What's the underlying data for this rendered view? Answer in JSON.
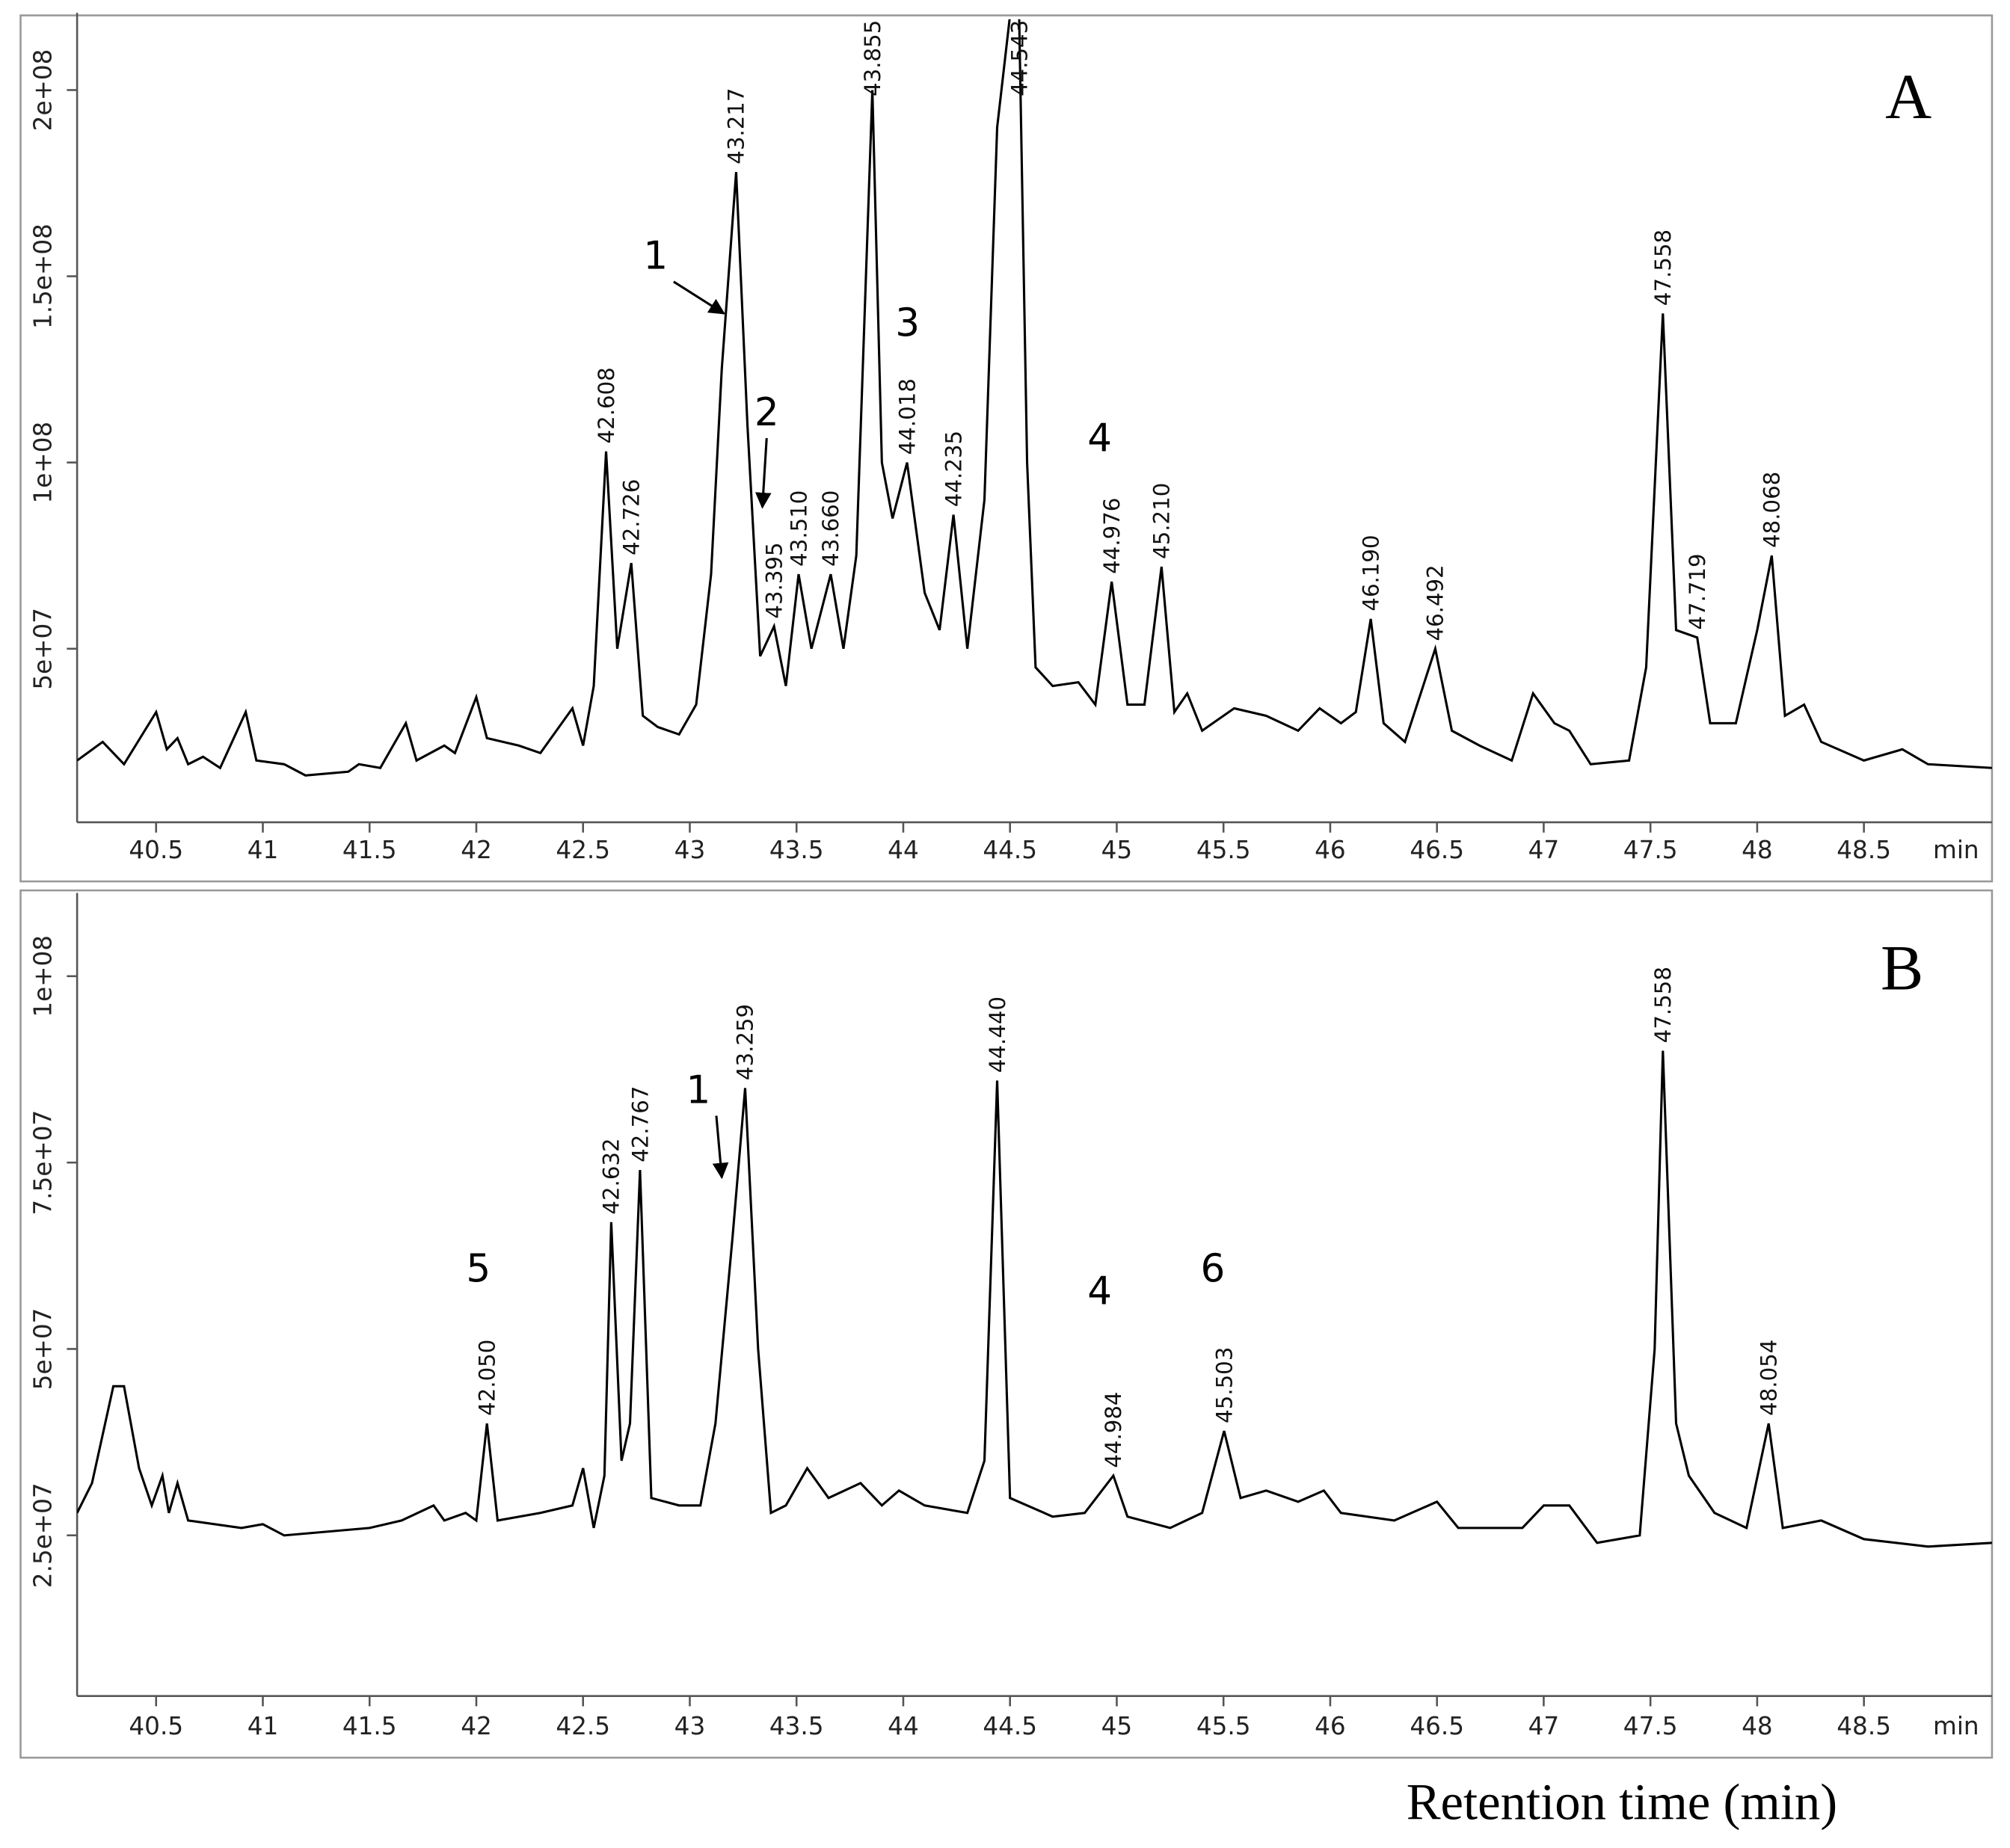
{
  "chart_data": [
    {
      "type": "line",
      "panel": "A",
      "xunit": "min",
      "color": "#000000",
      "xlim": [
        40.13,
        49.1
      ],
      "ylim": [
        3400000.0,
        219000000.0
      ],
      "xticks": [
        40.5,
        41,
        41.5,
        42,
        42.5,
        43,
        43.5,
        44,
        44.5,
        45,
        45.5,
        46,
        46.5,
        47,
        47.5,
        48,
        48.5
      ],
      "yticks": [
        {
          "value": 50000000.0,
          "label": "5e+07"
        },
        {
          "value": 100000000.0,
          "label": "1e+08"
        },
        {
          "value": 150000000.0,
          "label": "1.5e+08"
        },
        {
          "value": 200000000.0,
          "label": "2e+08"
        }
      ],
      "x": [
        40.13,
        40.25,
        40.35,
        40.5,
        40.55,
        40.6,
        40.65,
        40.72,
        40.8,
        40.92,
        40.97,
        41.1,
        41.2,
        41.4,
        41.45,
        41.55,
        41.67,
        41.72,
        41.85,
        41.9,
        42.0,
        42.05,
        42.2,
        42.3,
        42.45,
        42.5,
        42.55,
        42.608,
        42.66,
        42.726,
        42.78,
        42.85,
        42.95,
        43.03,
        43.1,
        43.15,
        43.217,
        43.27,
        43.33,
        43.395,
        43.45,
        43.51,
        43.57,
        43.66,
        43.72,
        43.78,
        43.855,
        43.9,
        43.95,
        44.018,
        44.1,
        44.17,
        44.235,
        44.3,
        44.38,
        44.44,
        44.5,
        44.543,
        44.58,
        44.62,
        44.7,
        44.82,
        44.9,
        44.976,
        45.05,
        45.13,
        45.21,
        45.27,
        45.33,
        45.4,
        45.55,
        45.7,
        45.85,
        45.95,
        46.05,
        46.12,
        46.19,
        46.25,
        46.35,
        46.492,
        46.57,
        46.7,
        46.85,
        46.95,
        47.05,
        47.12,
        47.22,
        47.4,
        47.48,
        47.558,
        47.62,
        47.719,
        47.78,
        47.9,
        48.0,
        48.068,
        48.13,
        48.22,
        48.3,
        48.5,
        48.68,
        48.8,
        49.1
      ],
      "values": [
        20000000.0,
        25000000.0,
        19000000.0,
        33000000.0,
        23000000.0,
        26000000.0,
        19000000.0,
        21000000.0,
        18000000.0,
        33000000.0,
        20000000.0,
        19000000.0,
        16000000.0,
        17000000.0,
        19000000.0,
        18000000.0,
        30000000.0,
        20000000.0,
        24000000.0,
        22000000.0,
        37000000.0,
        26000000.0,
        24000000.0,
        22000000.0,
        34000000.0,
        24000000.0,
        40000000.0,
        103000000.0,
        50000000.0,
        73000000.0,
        32000000.0,
        29000000.0,
        27000000.0,
        35000000.0,
        70000000.0,
        125000000.0,
        178000000.0,
        110000000.0,
        48000000.0,
        56000000.0,
        40000000.0,
        70000000.0,
        50000000.0,
        70000000.0,
        50000000.0,
        75000000.0,
        200000000.0,
        100000000.0,
        85000000.0,
        100000000.0,
        65000000.0,
        55000000.0,
        86000000.0,
        50000000.0,
        90000000.0,
        190000000.0,
        220000000.0,
        220000000.0,
        100000000.0,
        45000000.0,
        40000000.0,
        41000000.0,
        35000000.0,
        68000000.0,
        35000000.0,
        35000000.0,
        72000000.0,
        33000000.0,
        38000000.0,
        28000000.0,
        34000000.0,
        32000000.0,
        28000000.0,
        34000000.0,
        30000000.0,
        33000000.0,
        58000000.0,
        30000000.0,
        25000000.0,
        50000000.0,
        28000000.0,
        24000000.0,
        20000000.0,
        38000000.0,
        30000000.0,
        28000000.0,
        19000000.0,
        20000000.0,
        45000000.0,
        140000000.0,
        55000000.0,
        53000000.0,
        30000000.0,
        30000000.0,
        55000000.0,
        75000000.0,
        32000000.0,
        35000000.0,
        25000000.0,
        20000000.0,
        23000000.0,
        19000000.0,
        18000000.0
      ],
      "peaks": [
        {
          "x": 42.608,
          "label": "42.608"
        },
        {
          "x": 42.726,
          "label": "42.726"
        },
        {
          "x": 43.217,
          "label": "43.217"
        },
        {
          "x": 43.395,
          "label": "43.395"
        },
        {
          "x": 43.51,
          "label": "43.510"
        },
        {
          "x": 43.66,
          "label": "43.660"
        },
        {
          "x": 43.855,
          "label": "43.855"
        },
        {
          "x": 44.018,
          "label": "44.018"
        },
        {
          "x": 44.235,
          "label": "44.235"
        },
        {
          "x": 44.543,
          "label": "44.543"
        },
        {
          "x": 44.976,
          "label": "44.976"
        },
        {
          "x": 45.21,
          "label": "45.210"
        },
        {
          "x": 46.19,
          "label": "46.190"
        },
        {
          "x": 46.492,
          "label": "46.492"
        },
        {
          "x": 47.558,
          "label": "47.558"
        },
        {
          "x": 47.719,
          "label": "47.719"
        },
        {
          "x": 48.068,
          "label": "48.068"
        }
      ],
      "annotations": [
        {
          "text": "1",
          "x": 42.84,
          "y": 152000000.0,
          "arrow_to": [
            43.16,
            140000000.0
          ]
        },
        {
          "text": "2",
          "x": 43.36,
          "y": 110000000.0,
          "arrow_to": [
            43.34,
            88000000.0
          ]
        },
        {
          "text": "3",
          "x": 44.02,
          "y": 134000000.0
        },
        {
          "text": "4",
          "x": 44.92,
          "y": 103000000.0
        }
      ]
    },
    {
      "type": "line",
      "panel": "B",
      "xunit": "min",
      "color": "#000000",
      "xlabel": "Retention time (min)",
      "xlim": [
        40.13,
        49.1
      ],
      "ylim": [
        3450000.0,
        110300000.0
      ],
      "xticks": [
        40.5,
        41,
        41.5,
        42,
        42.5,
        43,
        43.5,
        44,
        44.5,
        45,
        45.5,
        46,
        46.5,
        47,
        47.5,
        48,
        48.5
      ],
      "yticks": [
        {
          "value": 25000000.0,
          "label": "2.5e+07"
        },
        {
          "value": 50000000.0,
          "label": "5e+07"
        },
        {
          "value": 75000000.0,
          "label": "7.5e+07"
        },
        {
          "value": 100000000.0,
          "label": "1e+08"
        }
      ],
      "x": [
        40.13,
        40.2,
        40.3,
        40.35,
        40.42,
        40.48,
        40.53,
        40.56,
        40.6,
        40.65,
        40.9,
        41.0,
        41.1,
        41.3,
        41.5,
        41.65,
        41.8,
        41.85,
        41.95,
        42.0,
        42.05,
        42.1,
        42.3,
        42.45,
        42.5,
        42.55,
        42.6,
        42.632,
        42.68,
        42.72,
        42.767,
        42.82,
        42.95,
        43.05,
        43.12,
        43.2,
        43.259,
        43.32,
        43.38,
        43.45,
        43.55,
        43.65,
        43.8,
        43.9,
        43.98,
        44.1,
        44.3,
        44.38,
        44.44,
        44.5,
        44.7,
        44.85,
        44.984,
        45.05,
        45.25,
        45.4,
        45.503,
        45.58,
        45.7,
        45.85,
        45.97,
        46.05,
        46.3,
        46.5,
        46.6,
        46.9,
        47.0,
        47.12,
        47.25,
        47.45,
        47.52,
        47.558,
        47.62,
        47.68,
        47.8,
        47.95,
        48.054,
        48.12,
        48.3,
        48.5,
        48.8,
        49.1
      ],
      "values": [
        28000000.0,
        32000000.0,
        45000000.0,
        45000000.0,
        34000000.0,
        29000000.0,
        33000000.0,
        28000000.0,
        32000000.0,
        27000000.0,
        26000000.0,
        26500000.0,
        25000000.0,
        25500000.0,
        26000000.0,
        27000000.0,
        29000000.0,
        27000000.0,
        28000000.0,
        27000000.0,
        40000000.0,
        27000000.0,
        28000000.0,
        29000000.0,
        34000000.0,
        26000000.0,
        33000000.0,
        67000000.0,
        35000000.0,
        40000000.0,
        74000000.0,
        30000000.0,
        29000000.0,
        29000000.0,
        40000000.0,
        65000000.0,
        85000000.0,
        50000000.0,
        28000000.0,
        29000000.0,
        34000000.0,
        30000000.0,
        32000000.0,
        29000000.0,
        31000000.0,
        29000000.0,
        28000000.0,
        35000000.0,
        86000000.0,
        30000000.0,
        27500000.0,
        28000000.0,
        33000000.0,
        27500000.0,
        26000000.0,
        28000000.0,
        39000000.0,
        30000000.0,
        31000000.0,
        29500000.0,
        31000000.0,
        28000000.0,
        27000000.0,
        29500000.0,
        26000000.0,
        26000000.0,
        29000000.0,
        29000000.0,
        24000000.0,
        25000000.0,
        50000000.0,
        90000000.0,
        40000000.0,
        33000000.0,
        28000000.0,
        26000000.0,
        40000000.0,
        26000000.0,
        27000000.0,
        24500000.0,
        23500000.0,
        24000000.0
      ],
      "peaks": [
        {
          "x": 42.05,
          "label": "42.050"
        },
        {
          "x": 42.632,
          "label": "42.632"
        },
        {
          "x": 42.767,
          "label": "42.767"
        },
        {
          "x": 43.259,
          "label": "43.259"
        },
        {
          "x": 44.44,
          "label": "44.440"
        },
        {
          "x": 44.984,
          "label": "44.984"
        },
        {
          "x": 45.503,
          "label": "45.503"
        },
        {
          "x": 47.558,
          "label": "47.558"
        },
        {
          "x": 48.054,
          "label": "48.054"
        }
      ],
      "annotations": [
        {
          "text": "5",
          "x": 42.01,
          "y": 59000000.0
        },
        {
          "text": "1",
          "x": 43.04,
          "y": 83000000.0,
          "arrow_to": [
            43.15,
            73000000.0
          ]
        },
        {
          "text": "4",
          "x": 44.92,
          "y": 56000000.0
        },
        {
          "text": "6",
          "x": 45.45,
          "y": 59000000.0
        }
      ]
    }
  ]
}
